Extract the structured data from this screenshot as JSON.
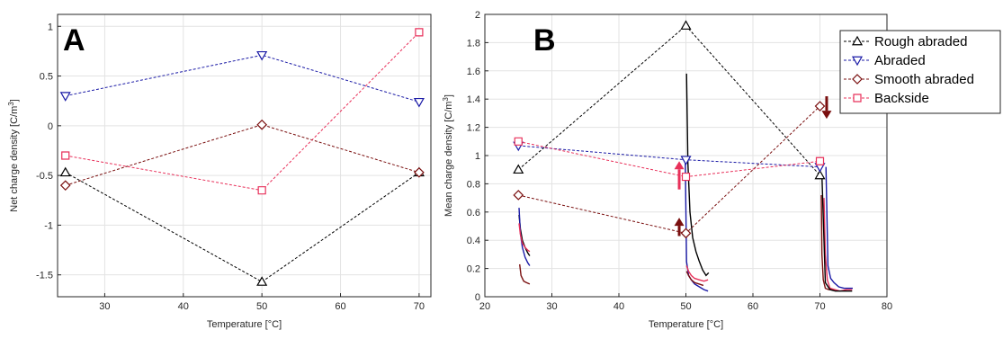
{
  "chart_data": [
    {
      "panel_label": "A",
      "type": "line",
      "xlabel": "Temperature [°C]",
      "ylabel": "Net charge density [C/m",
      "ylabel_sup": "3",
      "ylabel_end": "]",
      "xlim": [
        24,
        71.5
      ],
      "ylim": [
        -1.72,
        1.12
      ],
      "xticks": [
        30,
        40,
        50,
        60,
        70
      ],
      "xtick_labels": [
        "30",
        "40",
        "50",
        "60",
        "70"
      ],
      "yticks": [
        -1.5,
        -1,
        -0.5,
        0,
        0.5,
        1
      ],
      "ytick_labels": [
        "-1.5",
        "-1",
        "-0.5",
        "0",
        "0.5",
        "1"
      ],
      "grid": true,
      "series": [
        {
          "name": "Rough abraded",
          "color": "#000000",
          "marker": "triangle-up",
          "x": [
            25,
            50,
            70
          ],
          "y": [
            -0.47,
            -1.57,
            -0.47
          ]
        },
        {
          "name": "Abraded",
          "color": "#1a1aa6",
          "marker": "triangle-down",
          "x": [
            25,
            50,
            70
          ],
          "y": [
            0.3,
            0.71,
            0.24
          ]
        },
        {
          "name": "Smooth abraded",
          "color": "#7a0f0f",
          "marker": "diamond",
          "x": [
            25,
            50,
            70
          ],
          "y": [
            -0.6,
            0.01,
            -0.47
          ]
        },
        {
          "name": "Backside",
          "color": "#e8305a",
          "marker": "square",
          "x": [
            25,
            50,
            70
          ],
          "y": [
            -0.3,
            -0.65,
            0.94
          ]
        }
      ]
    },
    {
      "panel_label": "B",
      "type": "line",
      "xlabel": "Temperature [°C]",
      "ylabel": "Mean charge density [C/m",
      "ylabel_sup": "3",
      "ylabel_end": "]",
      "xlim": [
        20,
        80
      ],
      "ylim": [
        0,
        2
      ],
      "xticks": [
        20,
        30,
        40,
        50,
        60,
        70,
        80
      ],
      "xtick_labels": [
        "20",
        "30",
        "40",
        "50",
        "60",
        "70",
        "80"
      ],
      "yticks": [
        0,
        0.2,
        0.4,
        0.6,
        0.8,
        1,
        1.2,
        1.4,
        1.6,
        1.8,
        2
      ],
      "ytick_labels": [
        "0",
        "0.2",
        "0.4",
        "0.6",
        "0.8",
        "1",
        "1.2",
        "1.4",
        "1.6",
        "1.8",
        "2"
      ],
      "grid": true,
      "legend_position": "top-right",
      "series": [
        {
          "name": "Rough abraded",
          "color": "#000000",
          "marker": "triangle-up",
          "x": [
            25,
            50,
            70
          ],
          "y": [
            0.9,
            1.92,
            0.86
          ]
        },
        {
          "name": "Abraded",
          "color": "#1a1aa6",
          "marker": "triangle-down",
          "x": [
            25,
            50,
            70
          ],
          "y": [
            1.07,
            0.97,
            0.92
          ]
        },
        {
          "name": "Smooth abraded",
          "color": "#7a0f0f",
          "marker": "diamond",
          "x": [
            25,
            50,
            70
          ],
          "y": [
            0.72,
            0.45,
            1.35
          ]
        },
        {
          "name": "Backside",
          "color": "#e8305a",
          "marker": "square",
          "x": [
            25,
            50,
            70
          ],
          "y": [
            1.1,
            0.85,
            0.96
          ]
        }
      ],
      "decay_traces": [
        {
          "color": "#000000",
          "x": [
            25.1,
            25.3,
            25.6,
            26,
            26.4,
            26.7
          ],
          "y": [
            0.58,
            0.48,
            0.4,
            0.35,
            0.31,
            0.29
          ]
        },
        {
          "color": "#1a1aa6",
          "x": [
            25.1,
            25.3,
            25.6,
            26,
            26.4,
            26.7
          ],
          "y": [
            0.63,
            0.45,
            0.35,
            0.28,
            0.24,
            0.22
          ]
        },
        {
          "color": "#e8305a",
          "x": [
            25.1,
            25.3,
            25.6,
            26,
            26.4,
            26.7
          ],
          "y": [
            0.52,
            0.44,
            0.38,
            0.35,
            0.33,
            0.32
          ]
        },
        {
          "color": "#7a0f0f",
          "x": [
            25.2,
            25.4,
            25.8,
            26.2,
            26.7
          ],
          "y": [
            0.23,
            0.15,
            0.11,
            0.1,
            0.09
          ]
        },
        {
          "color": "#000000",
          "x": [
            50.1,
            50.3,
            50.6,
            51,
            51.5,
            52,
            52.5,
            53,
            53.4
          ],
          "y": [
            1.58,
            0.95,
            0.6,
            0.42,
            0.32,
            0.25,
            0.19,
            0.15,
            0.17
          ]
        },
        {
          "color": "#1a1aa6",
          "x": [
            49.9,
            50.1,
            50.4,
            50.8,
            51.3,
            52,
            52.7,
            53.3
          ],
          "y": [
            0.97,
            0.25,
            0.15,
            0.12,
            0.09,
            0.07,
            0.05,
            0.04
          ]
        },
        {
          "color": "#e8305a",
          "x": [
            50.1,
            50.4,
            50.8,
            51.3,
            52,
            52.7,
            53.3
          ],
          "y": [
            0.22,
            0.18,
            0.15,
            0.13,
            0.12,
            0.11,
            0.12
          ]
        },
        {
          "color": "#7a0f0f",
          "x": [
            50.1,
            50.4,
            50.8,
            51.3,
            52,
            52.6
          ],
          "y": [
            0.18,
            0.15,
            0.12,
            0.1,
            0.09,
            0.08
          ]
        },
        {
          "color": "#7a0f0f",
          "x": [
            70.2,
            70.3,
            70.5,
            70.8,
            71.3,
            72
          ],
          "y": [
            0.72,
            0.3,
            0.12,
            0.06,
            0.05,
            0.05
          ]
        },
        {
          "color": "#e8305a",
          "x": [
            70.6,
            70.8,
            71.1,
            71.5,
            72.2,
            73,
            74,
            74.8
          ],
          "y": [
            0.7,
            0.3,
            0.12,
            0.06,
            0.05,
            0.04,
            0.05,
            0.05
          ]
        },
        {
          "color": "#1a1aa6",
          "x": [
            70.9,
            71.2,
            71.6,
            72.1,
            72.8,
            73.6,
            74.3,
            74.9
          ],
          "y": [
            0.92,
            0.22,
            0.13,
            0.1,
            0.07,
            0.06,
            0.06,
            0.06
          ]
        },
        {
          "color": "#000000",
          "x": [
            70.3,
            70.8,
            71.5,
            72.3,
            73.2,
            74,
            74.8
          ],
          "y": [
            0.86,
            0.1,
            0.05,
            0.04,
            0.04,
            0.04,
            0.04
          ]
        }
      ],
      "arrows": [
        {
          "color": "#e8305a",
          "direction": "up",
          "x": 49,
          "y_tail": 0.76,
          "y_head": 0.96
        },
        {
          "color": "#7a0f0f",
          "direction": "up",
          "x": 49,
          "y_tail": 0.43,
          "y_head": 0.56
        },
        {
          "color": "#7a0f0f",
          "direction": "down",
          "x": 71,
          "y_tail": 1.42,
          "y_head": 1.26
        }
      ]
    }
  ]
}
